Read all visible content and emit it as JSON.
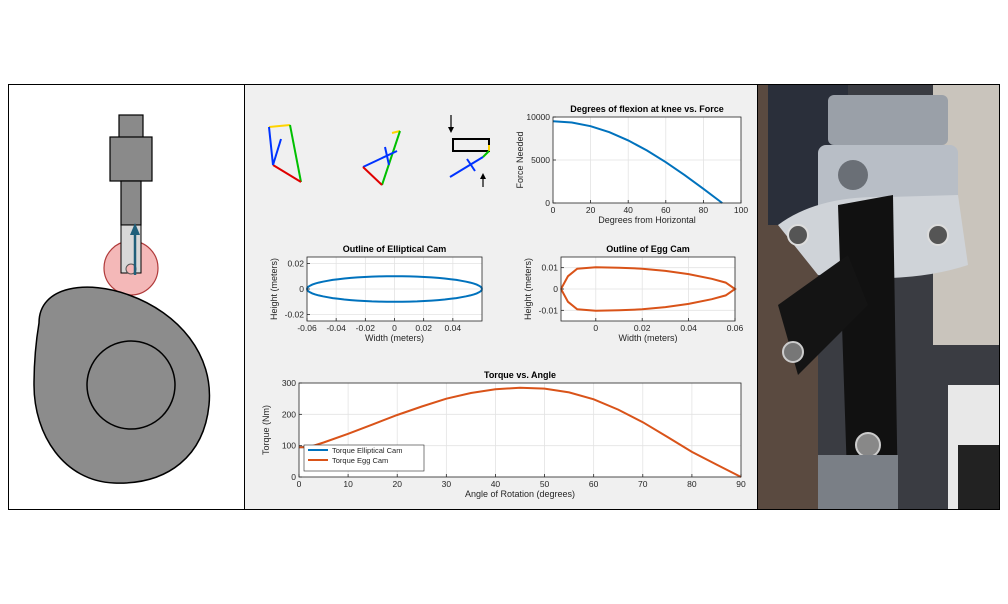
{
  "colors": {
    "blue": "#0072bd",
    "orange": "#d95319",
    "cam_fill": "#8c8c8c",
    "roller_fill": "#f4b8b8",
    "panel_bg": "#f0f0f0"
  },
  "chart_data": [
    {
      "type": "line",
      "title": "Degrees of flexion at knee vs. Force",
      "xlabel": "Degrees from Horizontal",
      "ylabel": "Force Needed",
      "xlim": [
        0,
        100
      ],
      "ylim": [
        0,
        10000
      ],
      "xticks": [
        0,
        20,
        40,
        60,
        80,
        100
      ],
      "yticks": [
        0,
        5000,
        10000
      ],
      "grid": true,
      "series": [
        {
          "color": "#0072bd",
          "x": [
            0,
            10,
            20,
            30,
            40,
            50,
            60,
            70,
            80,
            90
          ],
          "y": [
            9500,
            9356,
            8927,
            8227,
            7277,
            6106,
            4750,
            3249,
            1650,
            0
          ]
        }
      ]
    },
    {
      "type": "line",
      "title": "Outline of Elliptical Cam",
      "xlabel": "Width (meters)",
      "ylabel": "Height (meters)",
      "xlim": [
        -0.06,
        0.06
      ],
      "ylim": [
        -0.025,
        0.025
      ],
      "xticks": [
        -0.06,
        -0.04,
        -0.02,
        0,
        0.02,
        0.04
      ],
      "xticklabels": [
        "-0.06",
        "-0.04",
        "-0.02",
        "0",
        "0.02",
        "0.04"
      ],
      "yticks": [
        -0.02,
        0,
        0.02
      ],
      "yticklabels": [
        "-0.02",
        "0",
        "0.02"
      ],
      "grid": true,
      "series": [
        {
          "color": "#0072bd",
          "shape": "ellipse",
          "semi_axis_x": 0.06,
          "semi_axis_y": 0.01
        }
      ]
    },
    {
      "type": "line",
      "title": "Outline of Egg Cam",
      "xlabel": "Width (meters)",
      "ylabel": "Height (meters)",
      "xlim": [
        -0.015,
        0.06
      ],
      "ylim": [
        -0.015,
        0.015
      ],
      "xticks": [
        0,
        0.02,
        0.04,
        0.06
      ],
      "xticklabels": [
        "0",
        "0.02",
        "0.04",
        "0.06"
      ],
      "yticks": [
        -0.01,
        0,
        0.01
      ],
      "yticklabels": [
        "-0.01",
        "0",
        "0.01"
      ],
      "grid": true,
      "series": [
        {
          "color": "#d95319",
          "x": [
            -0.015,
            -0.012,
            -0.008,
            0,
            0.01,
            0.02,
            0.03,
            0.04,
            0.05,
            0.056,
            0.06,
            0.056,
            0.05,
            0.04,
            0.03,
            0.02,
            0.01,
            0,
            -0.008,
            -0.012,
            -0.015
          ],
          "y": [
            0,
            0.006,
            0.0095,
            0.0102,
            0.01,
            0.0095,
            0.0085,
            0.007,
            0.0048,
            0.003,
            0,
            -0.003,
            -0.0048,
            -0.007,
            -0.0085,
            -0.0095,
            -0.01,
            -0.0102,
            -0.0095,
            -0.006,
            0
          ]
        }
      ]
    },
    {
      "type": "line",
      "title": "Torque vs. Angle",
      "xlabel": "Angle of Rotation (degrees)",
      "ylabel": "Torque (Nm)",
      "xlim": [
        0,
        90
      ],
      "ylim": [
        0,
        300
      ],
      "xticks": [
        0,
        10,
        20,
        30,
        40,
        50,
        60,
        70,
        80,
        90
      ],
      "yticks": [
        0,
        100,
        200,
        300
      ],
      "grid": true,
      "legend": "bottom-left",
      "series": [
        {
          "name": "Torque Elliptical Cam",
          "color": "#0072bd",
          "x": [
            0,
            2,
            4
          ],
          "y": [
            95,
            96,
            100
          ]
        },
        {
          "name": "Torque Egg Cam",
          "color": "#d95319",
          "x": [
            0,
            2,
            5,
            10,
            15,
            20,
            25,
            30,
            35,
            40,
            45,
            50,
            55,
            60,
            65,
            70,
            75,
            80,
            85,
            90
          ],
          "y": [
            95,
            95,
            110,
            138,
            168,
            198,
            225,
            250,
            268,
            280,
            285,
            282,
            270,
            248,
            215,
            175,
            128,
            80,
            40,
            0
          ]
        }
      ]
    }
  ]
}
